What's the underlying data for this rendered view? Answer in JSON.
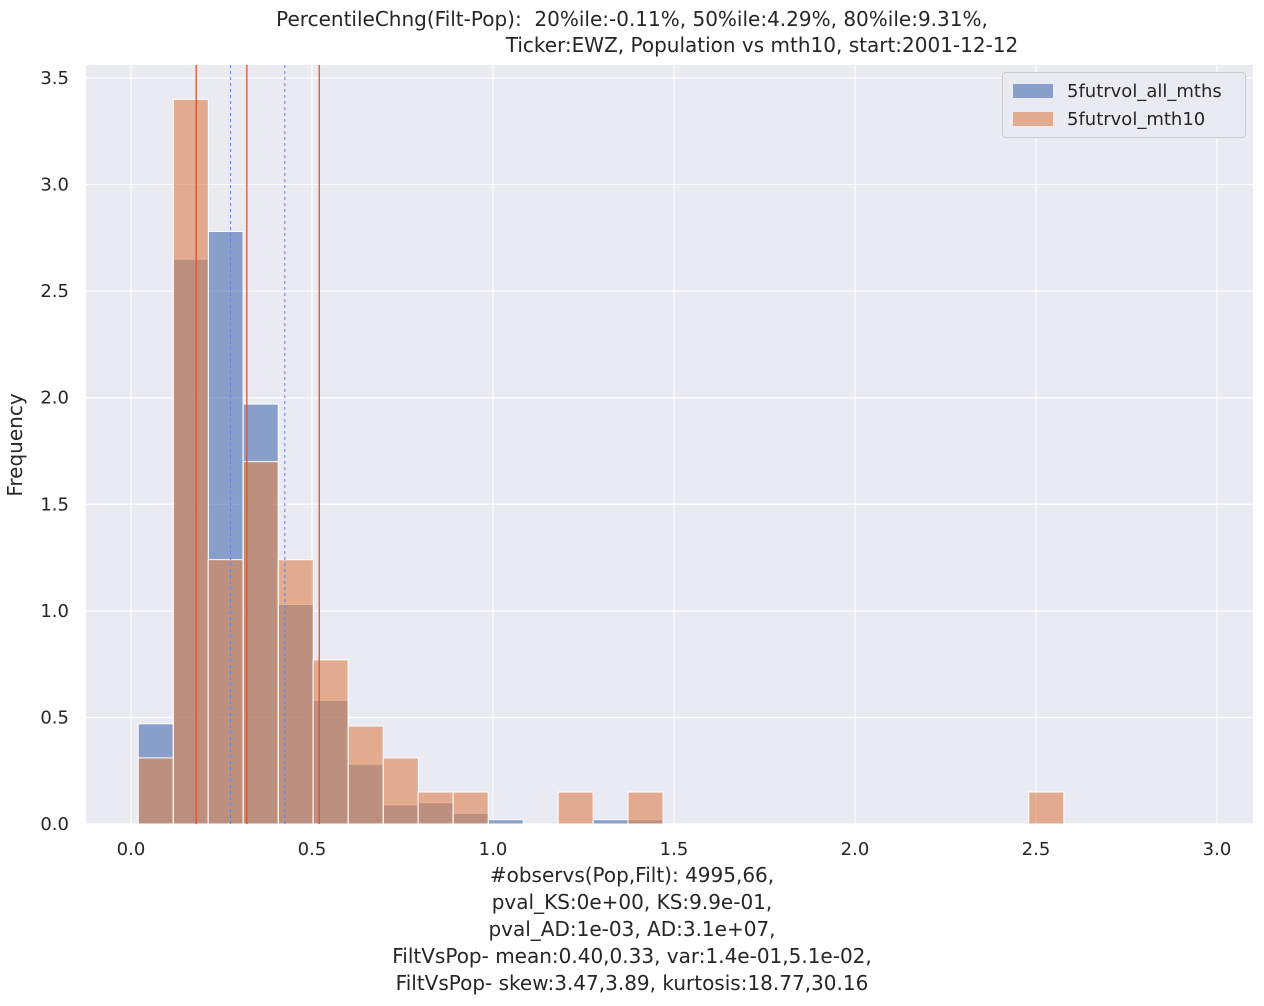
{
  "chart_data": {
    "type": "bar",
    "title_lines": [
      "PercentileChng(Filt-Pop):  20%ile:-0.11%, 50%ile:4.29%, 80%ile:9.31%,",
      "Ticker:EWZ, Population vs mth10, start:2001-12-12"
    ],
    "ylabel": "Frequency",
    "xlabel_lines": [
      "#observs(Pop,Filt): 4995,66,",
      "pval_KS:0e+00, KS:9.9e-01,",
      "pval_AD:1e-03, AD:3.1e+07,",
      "FiltVsPop- mean:0.40,0.33, var:1.4e-01,5.1e-02,",
      "FiltVsPop- skew:3.47,3.89, kurtosis:18.77,30.16"
    ],
    "xlim": [
      -0.13,
      3.1
    ],
    "ylim": [
      0,
      3.6
    ],
    "xticks": [
      "0.0",
      "0.5",
      "1.0",
      "1.5",
      "2.0",
      "2.5",
      "3.0"
    ],
    "yticks": [
      "0.0",
      "0.5",
      "1.0",
      "1.5",
      "2.0",
      "2.5",
      "3.0",
      "3.5"
    ],
    "bin_width": 0.0967,
    "series": [
      {
        "name": "5futrvol_all_mths",
        "color": "#4c72b0",
        "bin_starts": [
          0.02,
          0.117,
          0.213,
          0.31,
          0.407,
          0.503,
          0.6,
          0.697,
          0.793,
          0.89,
          0.987,
          1.083,
          1.18,
          1.277,
          1.373
        ],
        "values": [
          0.47,
          2.65,
          2.78,
          1.97,
          1.03,
          0.58,
          0.28,
          0.09,
          0.1,
          0.05,
          0.02,
          0.0,
          0.0,
          0.02,
          0.02
        ]
      },
      {
        "name": "5futrvol_mth10",
        "color": "#dd8452",
        "bin_starts": [
          0.02,
          0.117,
          0.213,
          0.31,
          0.407,
          0.503,
          0.6,
          0.697,
          0.793,
          0.89,
          1.18,
          1.373,
          2.48
        ],
        "values": [
          0.31,
          3.4,
          1.24,
          1.7,
          1.24,
          0.77,
          0.46,
          0.31,
          0.15,
          0.15,
          0.15,
          0.15,
          0.15
        ]
      }
    ],
    "vlines": [
      {
        "series": "5futrvol_all_mths",
        "style": "dotted",
        "x": [
          0.275,
          0.425
        ]
      },
      {
        "series": "5futrvol_mth10",
        "style": "solid",
        "x": [
          0.18,
          0.32,
          0.52
        ]
      }
    ],
    "legend": {
      "placement": "top-right",
      "entries": [
        "5futrvol_all_mths",
        "5futrvol_mth10"
      ]
    }
  }
}
